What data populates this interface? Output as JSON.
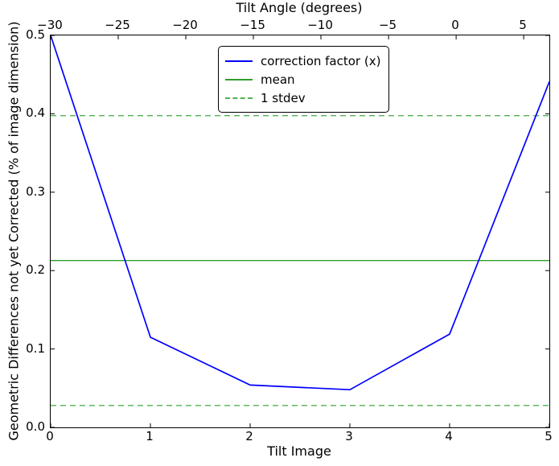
{
  "figure": {
    "background": "#ffffff",
    "box_color": "#000000"
  },
  "chart_data": {
    "type": "line",
    "top_xlabel": "Tilt Angle (degrees)",
    "xlabel": "Tilt Image",
    "ylabel": "Geometric Differences not yet Corrected (% of image dimension)",
    "x": [
      0,
      1,
      2,
      3,
      4,
      5
    ],
    "series": [
      {
        "name": "correction factor (x)",
        "color": "#0000ff",
        "style": "solid",
        "values": [
          0.5,
          0.115,
          0.054,
          0.048,
          0.119,
          0.441
        ]
      }
    ],
    "mean": 0.2128,
    "stdev": 0.1849,
    "mean_color": "#2e9e2e",
    "stdev_color": "#52b152",
    "xlim": [
      0,
      5
    ],
    "ylim": [
      0,
      0.5
    ],
    "top_xlim": [
      -30,
      6.9
    ],
    "x_ticks": {
      "values": [
        0,
        1,
        2,
        3,
        4,
        5
      ],
      "labels": [
        "0",
        "1",
        "2",
        "3",
        "4",
        "5"
      ]
    },
    "y_ticks": {
      "values": [
        0.0,
        0.1,
        0.2,
        0.3,
        0.4,
        0.5
      ],
      "labels": [
        "0.0",
        "0.1",
        "0.2",
        "0.3",
        "0.4",
        "0.5"
      ]
    },
    "top_ticks": {
      "values": [
        -30,
        -25,
        -20,
        -15,
        -10,
        -5,
        0,
        5
      ],
      "labels": [
        "−30",
        "−25",
        "−20",
        "−15",
        "−10",
        "−5",
        "0",
        "5"
      ]
    },
    "grid": false,
    "legend_position": "upper center",
    "legend": [
      {
        "label": "correction factor (x)",
        "color": "#0000ff",
        "style": "solid"
      },
      {
        "label": "mean",
        "color": "#2e9e2e",
        "style": "solid"
      },
      {
        "label": "1 stdev",
        "color": "#52b152",
        "style": "dashed"
      }
    ]
  }
}
